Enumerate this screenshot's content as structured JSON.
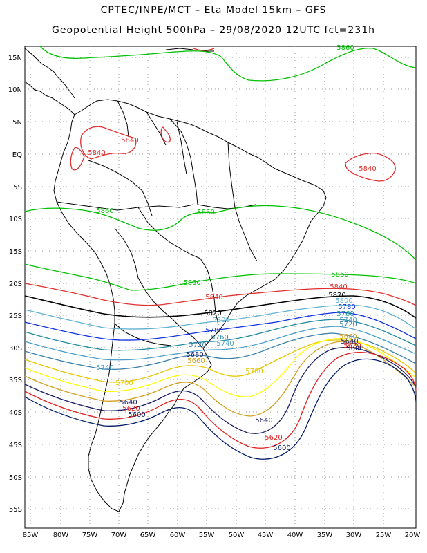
{
  "header": {
    "title_line1": "CPTEC/INPE/MCT –  Eta Model 15km – GFS",
    "title_line2": "Geopotential Height 500hPa – 29/08/2020 12UTC fct=231h"
  },
  "map": {
    "lat_labels": [
      "15N",
      "10N",
      "5N",
      "EQ",
      "5S",
      "10S",
      "15S",
      "20S",
      "25S",
      "30S",
      "35S",
      "40S",
      "45S",
      "50S",
      "55S"
    ],
    "lon_labels": [
      "85W",
      "80W",
      "75W",
      "70W",
      "65W",
      "60W",
      "55W",
      "50W",
      "45W",
      "40W",
      "35W",
      "30W",
      "25W",
      "20W"
    ]
  },
  "contours": {
    "colors": {
      "5580": "#001a66",
      "5620": "#e02020",
      "5640": "#1a1a66",
      "5660": "#d4a020",
      "5680": "#ffff00",
      "5700": "#e6c800",
      "5720": "#3a7fa8",
      "5740": "#4a9ec8",
      "5760": "#1e8aa0",
      "5780": "#1030e0",
      "5800": "#60b0d0",
      "5820": "#000000",
      "5840": "#e03030",
      "5860": "#00c000"
    },
    "labels": [
      {
        "id": "l5860a",
        "text": "5860"
      },
      {
        "id": "l5840a",
        "text": "5840"
      },
      {
        "id": "l5840b",
        "text": "5840"
      },
      {
        "id": "l5840c",
        "text": "5840"
      },
      {
        "id": "l5860b",
        "text": "5860"
      },
      {
        "id": "l5860c",
        "text": "5860"
      },
      {
        "id": "l5860d",
        "text": "5860"
      },
      {
        "id": "l5860e",
        "text": "5860"
      },
      {
        "id": "l5840d",
        "text": "5840"
      },
      {
        "id": "l5840e",
        "text": "5840"
      },
      {
        "id": "l5820a",
        "text": "5820"
      },
      {
        "id": "l5820b",
        "text": "5820"
      },
      {
        "id": "l5800a",
        "text": "5800"
      },
      {
        "id": "l5800b",
        "text": "5800"
      },
      {
        "id": "l5780a",
        "text": "5780"
      },
      {
        "id": "l5780b",
        "text": "5780"
      },
      {
        "id": "l5760a",
        "text": "5760"
      },
      {
        "id": "l5760b",
        "text": "5760"
      },
      {
        "id": "l5740a",
        "text": "5740"
      },
      {
        "id": "l5740b",
        "text": "5740"
      },
      {
        "id": "l5740c",
        "text": "5740"
      },
      {
        "id": "l5720a",
        "text": "5720"
      },
      {
        "id": "l5720b",
        "text": "5720"
      },
      {
        "id": "l5700a",
        "text": "5700"
      },
      {
        "id": "l5700b",
        "text": "5700"
      },
      {
        "id": "l5680a",
        "text": "5680"
      },
      {
        "id": "l5660a",
        "text": "5660"
      },
      {
        "id": "l5660b",
        "text": "5660"
      },
      {
        "id": "l5640a",
        "text": "5640"
      },
      {
        "id": "l5640b",
        "text": "5640"
      },
      {
        "id": "l5640c",
        "text": "5640"
      },
      {
        "id": "l5620a",
        "text": "5620"
      },
      {
        "id": "l5620b",
        "text": "5620"
      },
      {
        "id": "l5620c",
        "text": "5620"
      },
      {
        "id": "l5600a",
        "text": "5600"
      },
      {
        "id": "l5600b",
        "text": "5600"
      },
      {
        "id": "l5600c",
        "text": "5600"
      }
    ]
  }
}
